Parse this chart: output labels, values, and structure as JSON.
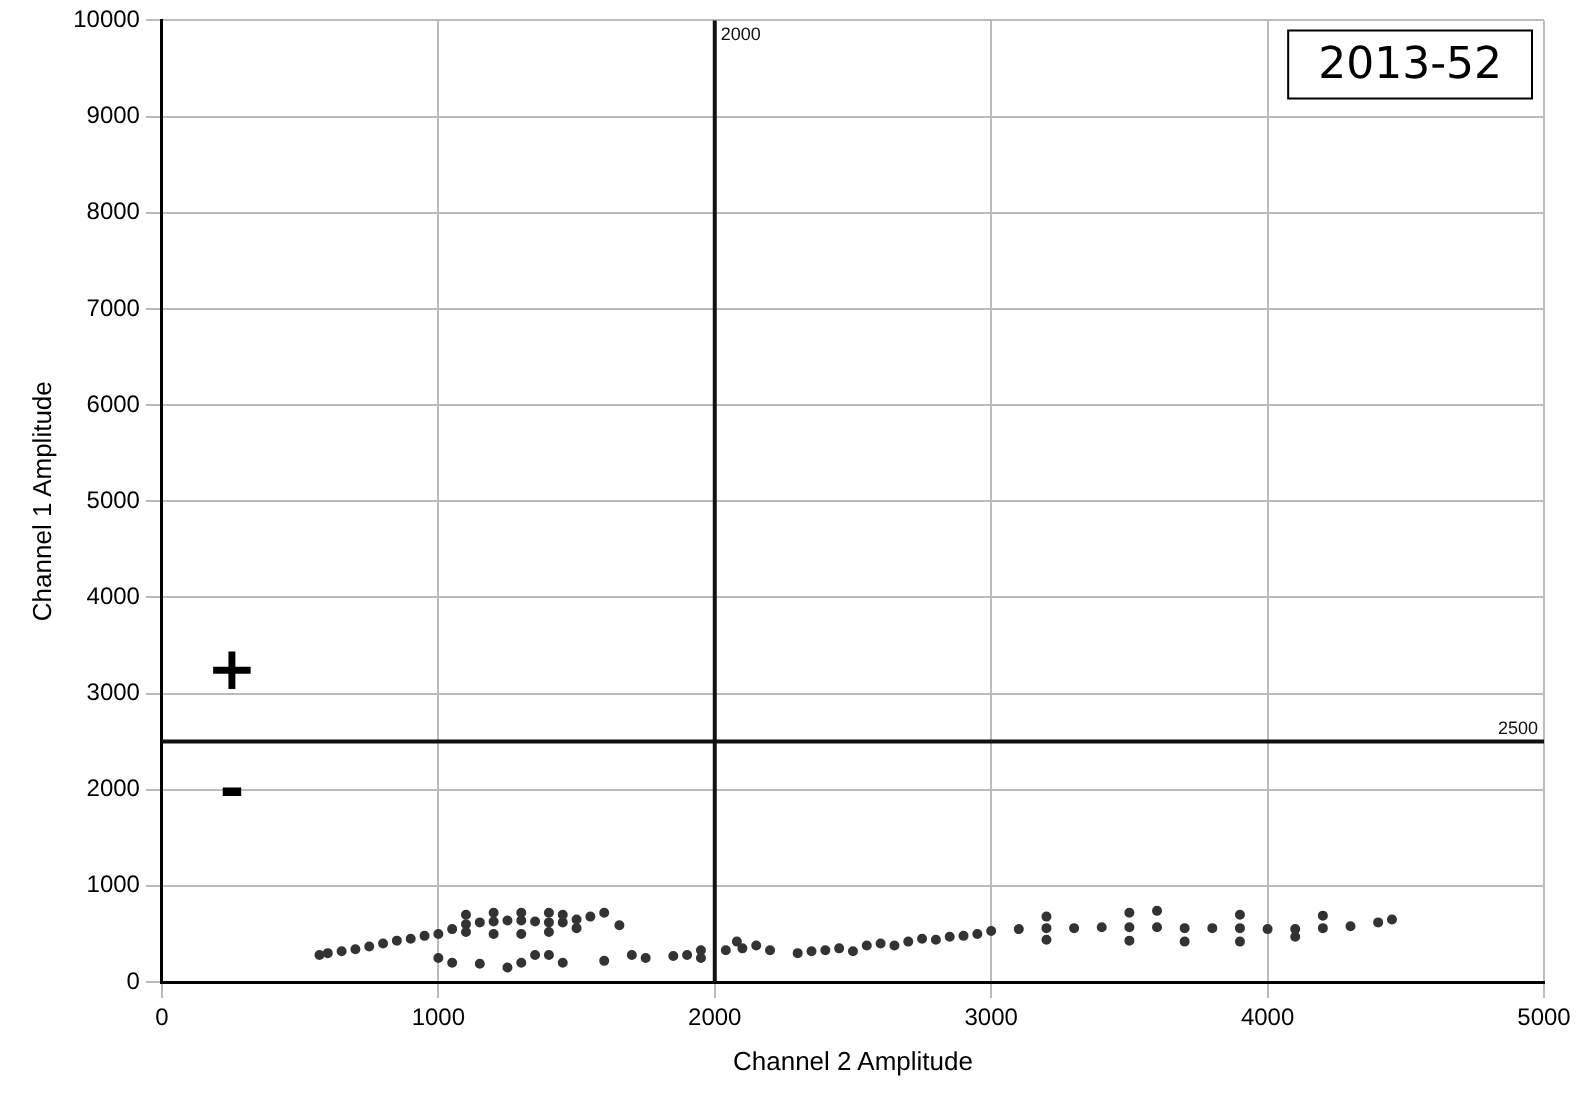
{
  "chart_data": {
    "type": "scatter",
    "title": "2013-52",
    "xlabel": "Channel 2 Amplitude",
    "ylabel": "Channel 1 Amplitude",
    "xlim": [
      0,
      5000
    ],
    "xticks": [
      0,
      1000,
      2000,
      3000,
      4000,
      5000
    ],
    "ylim": [
      0,
      10000
    ],
    "yticks": [
      0,
      1000,
      2000,
      3000,
      4000,
      5000,
      6000,
      7000,
      8000,
      9000,
      10000
    ],
    "grid": true,
    "legend": false,
    "marker": "circle",
    "ref_lines": [
      {
        "axis": "x",
        "value": 2000,
        "label": "2000",
        "color": "#111111"
      },
      {
        "axis": "y",
        "value": 2500,
        "label": "2500",
        "color": "#111111"
      }
    ],
    "annotations": [
      "+",
      "-"
    ],
    "series": [
      {
        "color": "#333333",
        "x": [
          570,
          600,
          650,
          700,
          750,
          800,
          850,
          900,
          950,
          1000,
          1050,
          1100,
          1150,
          1200,
          1250,
          1300,
          1350,
          1400,
          1450,
          1500,
          1550,
          1600,
          1100,
          1200,
          1300,
          1400,
          1500,
          1100,
          1200,
          1300,
          1400,
          1450,
          1000,
          1050,
          1150,
          1250,
          1300,
          1350,
          1400,
          1450,
          1600,
          1655,
          1700,
          1750,
          1850,
          1900,
          1950,
          1950
        ],
        "values": [
          280,
          300,
          320,
          340,
          370,
          400,
          430,
          450,
          480,
          500,
          550,
          600,
          620,
          630,
          640,
          640,
          630,
          620,
          620,
          650,
          680,
          720,
          520,
          500,
          500,
          520,
          560,
          700,
          720,
          720,
          720,
          700,
          250,
          200,
          190,
          150,
          200,
          280,
          280,
          200,
          220,
          590,
          280,
          250,
          270,
          280,
          250,
          330
        ]
      },
      {
        "color": "#333333",
        "x": [
          2040,
          2080,
          2100,
          2150,
          2200,
          2300,
          2350,
          2400,
          2450,
          2500,
          2550,
          2600,
          2650,
          2700,
          2750,
          2800,
          2850,
          2900,
          2950,
          3000,
          3100,
          3200,
          3300,
          3400,
          3500,
          3600,
          3700,
          3800,
          3900,
          4000,
          4100,
          4200,
          4300,
          4400,
          4450,
          3200,
          3500,
          3600,
          3900,
          4200,
          3200,
          3500,
          3700,
          3900,
          4100
        ],
        "values": [
          330,
          420,
          350,
          380,
          330,
          300,
          320,
          330,
          350,
          320,
          380,
          400,
          380,
          420,
          450,
          440,
          470,
          480,
          500,
          530,
          550,
          560,
          560,
          570,
          570,
          570,
          560,
          560,
          560,
          550,
          550,
          560,
          580,
          620,
          650,
          680,
          720,
          740,
          700,
          690,
          440,
          430,
          420,
          420,
          470
        ]
      }
    ]
  }
}
